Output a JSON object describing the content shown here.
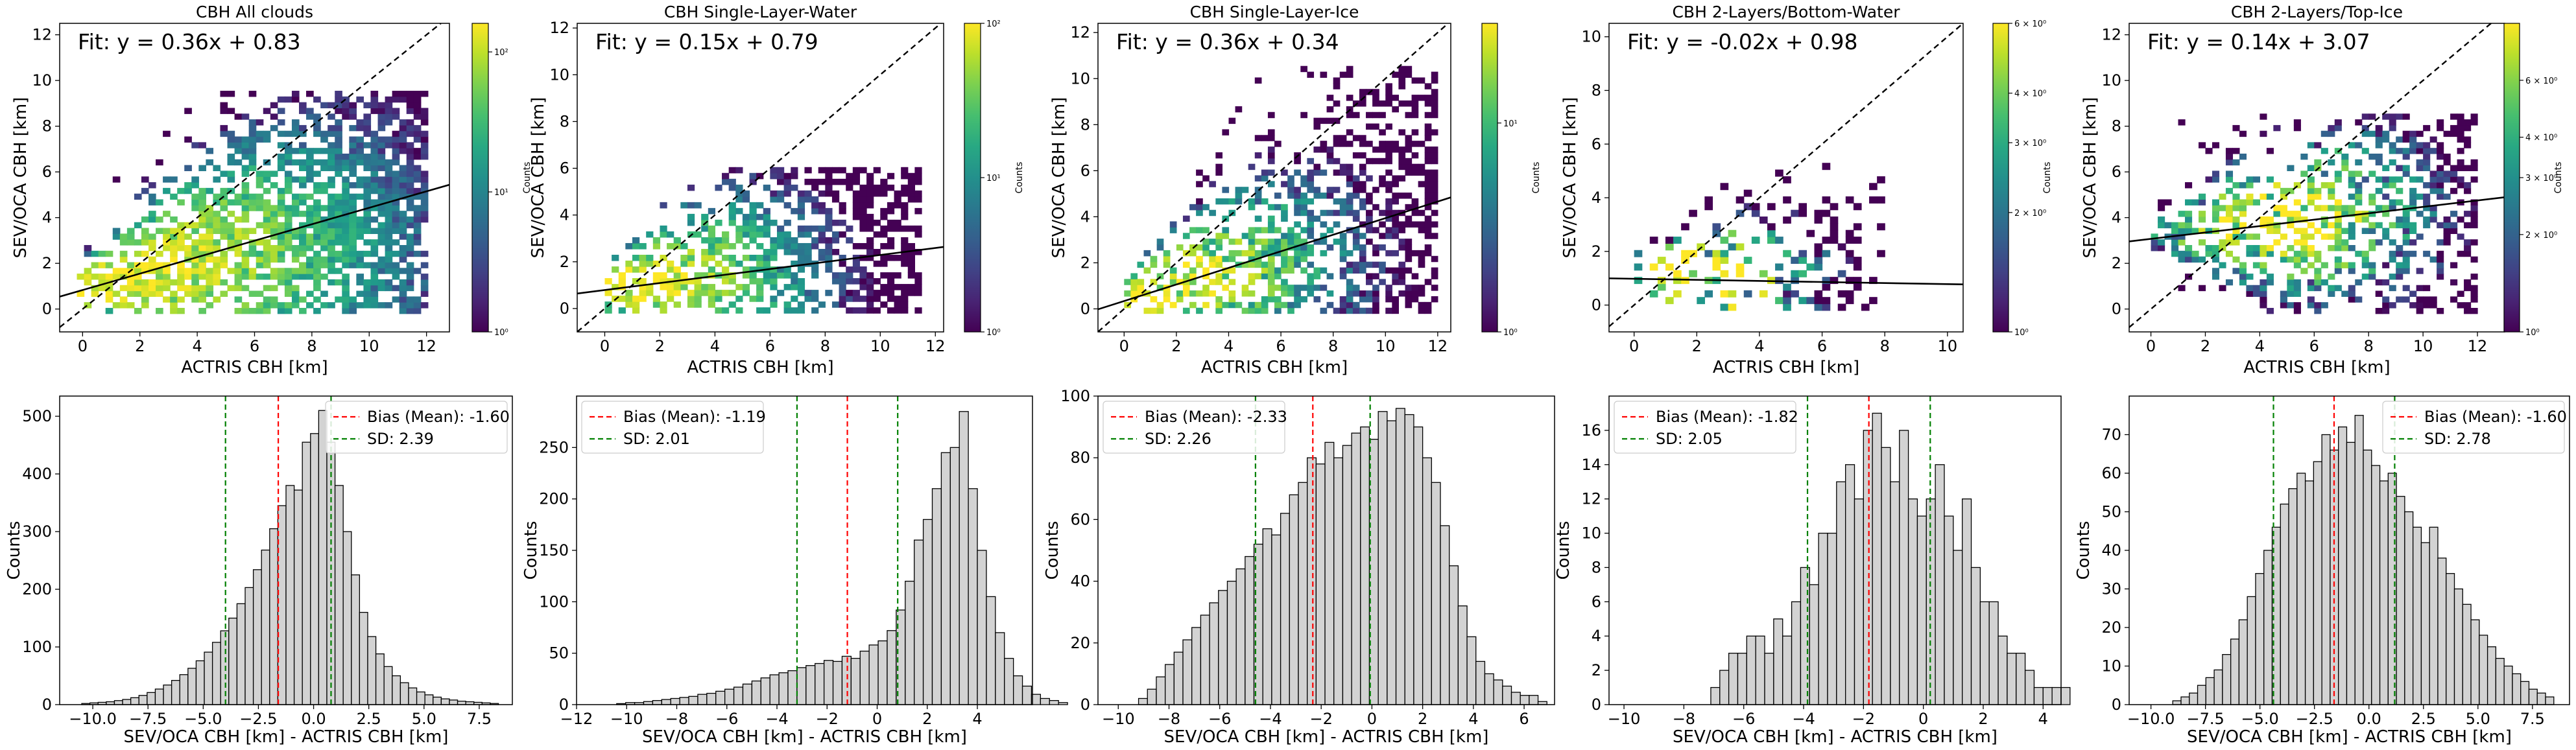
{
  "chart_data": [
    {
      "type": "heatmap",
      "kind": "hist2d",
      "title": "CBH All clouds",
      "xlabel": "ACTRIS CBH [km]",
      "ylabel": "SEV/OCA CBH [km]",
      "xlim": [
        -0.8,
        12.8
      ],
      "ylim": [
        -1.0,
        12.5
      ],
      "xticks": [
        0,
        2,
        4,
        6,
        8,
        10,
        12
      ],
      "yticks": [
        0,
        2,
        4,
        6,
        8,
        10,
        12
      ],
      "fit": {
        "slope": 0.36,
        "intercept": 0.83,
        "label": "Fit: y = 0.36x + 0.83"
      },
      "colorbar": {
        "label": "Counts",
        "scale": "log",
        "range": [
          1,
          160
        ],
        "ticks": [
          {
            "v": 1,
            "label": "10⁰"
          },
          {
            "v": 10,
            "label": "10¹"
          },
          {
            "v": 100,
            "label": "10²"
          }
        ]
      },
      "density": {
        "cx": 0.7,
        "cy": 0.5,
        "peak": 150,
        "spread": 4.4,
        "extent": [
          -0.2,
          12.0
        ],
        "ycap": 9.5,
        "fill": 0.78,
        "slope": 0.36,
        "intercept": 0.83
      }
    },
    {
      "type": "heatmap",
      "kind": "hist2d",
      "title": "CBH Single-Layer-Water",
      "xlabel": "ACTRIS CBH [km]",
      "ylabel": "SEV/OCA CBH [km]",
      "xlim": [
        -1.0,
        12.3
      ],
      "ylim": [
        -1.0,
        12.2
      ],
      "xticks": [
        0,
        2,
        4,
        6,
        8,
        10,
        12
      ],
      "yticks": [
        0,
        2,
        4,
        6,
        8,
        10,
        12
      ],
      "fit": {
        "slope": 0.15,
        "intercept": 0.79,
        "label": "Fit: y = 0.15x + 0.79"
      },
      "colorbar": {
        "label": "Counts",
        "scale": "log",
        "range": [
          1,
          100
        ],
        "ticks": [
          {
            "v": 1,
            "label": "10⁰"
          },
          {
            "v": 10,
            "label": "10¹"
          },
          {
            "v": 100,
            "label": "10²"
          }
        ]
      },
      "density": {
        "cx": 0.6,
        "cy": 0.6,
        "peak": 90,
        "spread": 3.0,
        "extent": [
          0,
          11.4
        ],
        "ycap": 6.0,
        "fill": 0.62,
        "slope": 0.15,
        "intercept": 0.79
      }
    },
    {
      "type": "heatmap",
      "kind": "hist2d",
      "title": "CBH Single-Layer-Ice",
      "xlabel": "ACTRIS CBH [km]",
      "ylabel": "SEV/OCA CBH [km]",
      "xlim": [
        -1.0,
        12.5
      ],
      "ylim": [
        -1.0,
        12.4
      ],
      "xticks": [
        0,
        2,
        4,
        6,
        8,
        10,
        12
      ],
      "yticks": [
        0,
        2,
        4,
        6,
        8,
        10,
        12
      ],
      "fit": {
        "slope": 0.36,
        "intercept": 0.34,
        "label": "Fit: y = 0.36x + 0.34"
      },
      "colorbar": {
        "label": "Counts",
        "scale": "log",
        "range": [
          1,
          30
        ],
        "ticks": [
          {
            "v": 1,
            "label": "10⁰"
          },
          {
            "v": 10,
            "label": "10¹"
          }
        ]
      },
      "density": {
        "cx": 1.0,
        "cy": 0.5,
        "peak": 28,
        "spread": 3.8,
        "extent": [
          0,
          12.0
        ],
        "ycap": 10.5,
        "fill": 0.55,
        "slope": 0.36,
        "intercept": 0.34
      }
    },
    {
      "type": "heatmap",
      "kind": "hist2d",
      "title": "CBH 2-Layers/Bottom-Water",
      "xlabel": "ACTRIS CBH [km]",
      "ylabel": "SEV/OCA CBH [km]",
      "xlim": [
        -0.8,
        10.5
      ],
      "ylim": [
        -1.0,
        10.5
      ],
      "xticks": [
        0,
        2,
        4,
        6,
        8,
        10
      ],
      "yticks": [
        0,
        2,
        4,
        6,
        8,
        10
      ],
      "fit": {
        "slope": -0.02,
        "intercept": 0.98,
        "label": "Fit: y = -0.02x + 0.98"
      },
      "colorbar": {
        "label": "Counts",
        "scale": "log",
        "range": [
          1,
          6
        ],
        "ticks": [
          {
            "v": 1,
            "label": "10⁰"
          },
          {
            "v": 2,
            "label": "2 × 10⁰"
          },
          {
            "v": 3,
            "label": "3 × 10⁰"
          },
          {
            "v": 4,
            "label": "4 × 10⁰"
          },
          {
            "v": 6,
            "label": "6 × 10⁰"
          }
        ]
      },
      "density": {
        "cx": 1.6,
        "cy": 0.8,
        "peak": 6,
        "spread": 2.6,
        "extent": [
          0,
          7.8
        ],
        "ycap": 5.2,
        "fill": 0.3,
        "slope": -0.02,
        "intercept": 0.98
      }
    },
    {
      "type": "heatmap",
      "kind": "hist2d",
      "title": "CBH 2-Layers/Top-Ice",
      "xlabel": "ACTRIS CBH [km]",
      "ylabel": "SEV/OCA CBH [km]",
      "xlim": [
        -0.8,
        13.0
      ],
      "ylim": [
        -1.0,
        12.5
      ],
      "xticks": [
        0,
        2,
        4,
        6,
        8,
        10,
        12
      ],
      "yticks": [
        0,
        2,
        4,
        6,
        8,
        10,
        12
      ],
      "fit": {
        "slope": 0.14,
        "intercept": 3.07,
        "label": "Fit: y = 0.14x + 3.07"
      },
      "colorbar": {
        "label": "Counts",
        "scale": "log",
        "range": [
          1,
          9
        ],
        "ticks": [
          {
            "v": 1,
            "label": "10⁰"
          },
          {
            "v": 2,
            "label": "2 × 10⁰"
          },
          {
            "v": 3,
            "label": "3 × 10⁰"
          },
          {
            "v": 4,
            "label": "4 × 10⁰"
          },
          {
            "v": 6,
            "label": "6 × 10⁰"
          }
        ]
      },
      "density": {
        "cx": 4.5,
        "cy": 3.8,
        "peak": 8,
        "spread": 3.4,
        "extent": [
          0,
          12.0
        ],
        "ycap": 8.5,
        "fill": 0.5,
        "slope": 0.14,
        "intercept": 3.07
      }
    },
    {
      "type": "bar",
      "kind": "histogram",
      "xlabel": "SEV/OCA CBH [km] - ACTRIS CBH [km]",
      "ylabel": "Counts",
      "xlim": [
        -11.5,
        9.0
      ],
      "ylim": [
        0,
        535
      ],
      "xticks": [
        -10.0,
        -7.5,
        -5.0,
        -2.5,
        0.0,
        2.5,
        5.0,
        7.5
      ],
      "xtick_labels": [
        "−10.0",
        "−7.5",
        "−5.0",
        "−2.5",
        "0.0",
        "2.5",
        "5.0",
        "7.5"
      ],
      "yticks": [
        0,
        100,
        200,
        300,
        400,
        500
      ],
      "bias": -1.6,
      "sd": 2.39,
      "legend": {
        "position": "top-right",
        "bias_label": "Bias (Mean): -1.60",
        "sd_label": "SD: 2.39"
      },
      "bin_start": -10.5,
      "bin_width": 0.37,
      "counts": [
        2,
        3,
        4,
        5,
        7,
        9,
        12,
        16,
        21,
        27,
        34,
        42,
        52,
        63,
        76,
        91,
        108,
        128,
        150,
        175,
        203,
        234,
        268,
        305,
        345,
        380,
        372,
        455,
        470,
        510,
        455,
        380,
        300,
        225,
        160,
        118,
        88,
        66,
        50,
        38,
        29,
        22,
        17,
        13,
        10,
        8,
        6,
        5,
        4,
        3,
        2
      ]
    },
    {
      "type": "bar",
      "kind": "histogram",
      "xlabel": "SEV/OCA CBH [km] - ACTRIS CBH [km]",
      "ylabel": "Counts",
      "xlim": [
        -12.0,
        6.2
      ],
      "ylim": [
        0,
        300
      ],
      "xticks": [
        -12,
        -10,
        -8,
        -6,
        -4,
        -2,
        0,
        2,
        4
      ],
      "xtick_labels": [
        "−12",
        "−10",
        "−8",
        "−6",
        "−4",
        "−2",
        "0",
        "2",
        "4"
      ],
      "yticks": [
        0,
        50,
        100,
        150,
        200,
        250
      ],
      "bias": -1.19,
      "sd": 2.01,
      "legend": {
        "position": "top-left",
        "bias_label": "Bias (Mean): -1.19",
        "sd_label": "SD: 2.01"
      },
      "bin_start": -10.4,
      "bin_width": 0.36,
      "counts": [
        1,
        2,
        2,
        3,
        4,
        5,
        6,
        7,
        8,
        10,
        11,
        13,
        15,
        17,
        20,
        23,
        26,
        29,
        31,
        33,
        36,
        38,
        40,
        43,
        42,
        47,
        45,
        52,
        58,
        62,
        72,
        92,
        120,
        160,
        180,
        210,
        245,
        250,
        285,
        210,
        150,
        105,
        70,
        45,
        28,
        18,
        10,
        6,
        4,
        2
      ]
    },
    {
      "type": "bar",
      "kind": "histogram",
      "xlabel": "SEV/OCA CBH [km] - ACTRIS CBH [km]",
      "ylabel": "Counts",
      "xlim": [
        -10.8,
        7.2
      ],
      "ylim": [
        0,
        100
      ],
      "xticks": [
        -10,
        -8,
        -6,
        -4,
        -2,
        0,
        2,
        4,
        6
      ],
      "xtick_labels": [
        "−10",
        "−8",
        "−6",
        "−4",
        "−2",
        "0",
        "2",
        "4",
        "6"
      ],
      "yticks": [
        0,
        20,
        40,
        60,
        80,
        100
      ],
      "bias": -2.33,
      "sd": 2.26,
      "legend": {
        "position": "top-left",
        "bias_label": "Bias (Mean): -2.33",
        "sd_label": "SD: 2.26"
      },
      "bin_start": -9.2,
      "bin_width": 0.35,
      "counts": [
        2,
        5,
        9,
        13,
        17,
        21,
        25,
        29,
        33,
        37,
        40,
        44,
        48,
        52,
        57,
        55,
        62,
        68,
        72,
        80,
        78,
        85,
        80,
        84,
        88,
        90,
        86,
        95,
        92,
        96,
        94,
        90,
        80,
        72,
        58,
        45,
        32,
        22,
        14,
        10,
        8,
        6,
        4,
        3,
        3,
        1
      ]
    },
    {
      "type": "bar",
      "kind": "histogram",
      "xlabel": "SEV/OCA CBH [km] - ACTRIS CBH [km]",
      "ylabel": "Counts",
      "xlim": [
        -10.5,
        4.6
      ],
      "ylim": [
        0,
        18
      ],
      "xticks": [
        -10,
        -8,
        -6,
        -4,
        -2,
        0,
        2,
        4
      ],
      "xtick_labels": [
        "−10",
        "−8",
        "−6",
        "−4",
        "−2",
        "0",
        "2",
        "4"
      ],
      "yticks": [
        0,
        2,
        4,
        6,
        8,
        10,
        12,
        14,
        16
      ],
      "bias": -1.82,
      "sd": 2.05,
      "legend": {
        "position": "top-left",
        "bias_label": "Bias (Mean): -1.82",
        "sd_label": "SD: 2.05"
      },
      "bin_start": -7.1,
      "bin_width": 0.3,
      "counts": [
        1,
        2,
        3,
        3,
        4,
        4,
        3,
        5,
        4,
        6,
        8,
        7,
        10,
        10,
        13,
        14,
        12,
        16,
        17,
        15,
        13,
        16,
        12,
        11,
        12,
        14,
        11,
        9,
        12,
        8,
        6,
        6,
        4,
        3,
        3,
        2,
        1,
        1,
        1,
        1
      ]
    },
    {
      "type": "bar",
      "kind": "histogram",
      "xlabel": "SEV/OCA CBH [km] - ACTRIS CBH [km]",
      "ylabel": "Counts",
      "xlim": [
        -11.0,
        9.2
      ],
      "ylim": [
        0,
        80
      ],
      "xticks": [
        -10.0,
        -7.5,
        -5.0,
        -2.5,
        0.0,
        2.5,
        5.0,
        7.5
      ],
      "xtick_labels": [
        "−10.0",
        "−7.5",
        "−5.0",
        "−2.5",
        "0.0",
        "2.5",
        "5.0",
        "7.5"
      ],
      "yticks": [
        0,
        10,
        20,
        30,
        40,
        50,
        60,
        70
      ],
      "bias": -1.6,
      "sd": 2.78,
      "legend": {
        "position": "top-right",
        "bias_label": "Bias (Mean): -1.60",
        "sd_label": "SD: 2.78"
      },
      "bin_start": -9.0,
      "bin_width": 0.38,
      "counts": [
        1,
        2,
        3,
        5,
        7,
        9,
        13,
        17,
        22,
        28,
        34,
        40,
        46,
        52,
        56,
        60,
        58,
        63,
        70,
        66,
        72,
        68,
        75,
        66,
        62,
        58,
        60,
        54,
        50,
        46,
        42,
        46,
        38,
        34,
        30,
        26,
        22,
        18,
        15,
        12,
        10,
        8,
        6,
        4,
        3,
        2
      ]
    }
  ]
}
